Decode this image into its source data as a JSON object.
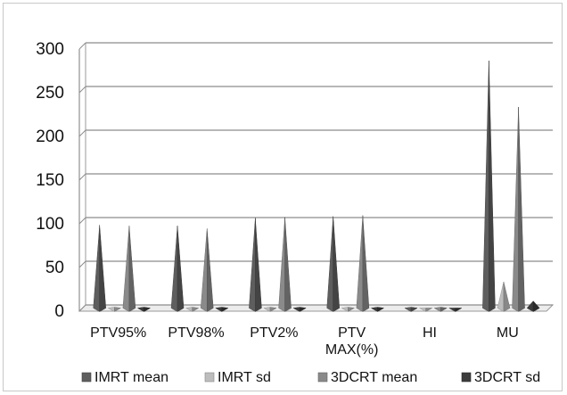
{
  "chart_data": {
    "type": "bar",
    "style": "3d-pyramid",
    "title": "",
    "xlabel": "",
    "ylabel": "",
    "ylim": [
      0,
      300
    ],
    "yticks": [
      0,
      50,
      100,
      150,
      200,
      250,
      300
    ],
    "grid": true,
    "legend_position": "bottom",
    "categories": [
      [
        "PTV95%"
      ],
      [
        "PTV98%"
      ],
      [
        "PTV2%"
      ],
      [
        "PTV",
        "MAX(%)"
      ],
      [
        "HI"
      ],
      [
        "MU"
      ]
    ],
    "series": [
      {
        "name": "IMRT mean",
        "color": "#5e5e5e",
        "values": [
          95,
          94,
          103,
          105,
          1,
          283
        ]
      },
      {
        "name": "IMRT sd",
        "color": "#bdbdbd",
        "values": [
          1,
          1,
          1,
          1,
          0.05,
          30
        ]
      },
      {
        "name": "3DCRT mean",
        "color": "#8a8a8a",
        "values": [
          94,
          91,
          104,
          106,
          1,
          230
        ]
      },
      {
        "name": "3DCRT sd",
        "color": "#3c3c3c",
        "values": [
          1,
          1,
          1,
          1,
          0.05,
          8
        ]
      }
    ]
  }
}
